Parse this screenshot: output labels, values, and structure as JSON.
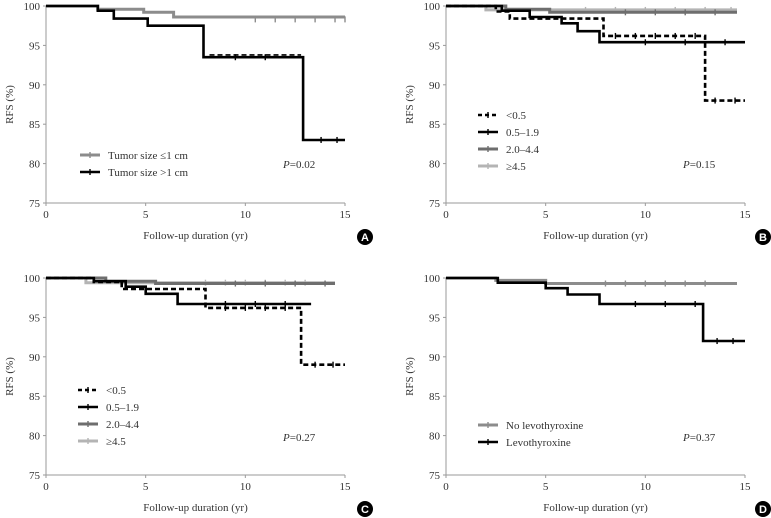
{
  "colors": {
    "black": "#000000",
    "darkgray": "#6e6e6e",
    "gray": "#8c8c8c",
    "lightgray": "#b4b4b4",
    "axis": "#9a9a9a"
  },
  "chart_data": [
    {
      "panel": "A",
      "type": "line",
      "xlabel": "Follow-up duration (yr)",
      "ylabel": "RFS (%)",
      "xlim": [
        0,
        15
      ],
      "ylim": [
        75,
        100
      ],
      "xticks": [
        0,
        5,
        10,
        15
      ],
      "yticks": [
        75,
        80,
        85,
        90,
        95,
        100
      ],
      "pvalue": {
        "prefix": "P",
        "text": "=0.02"
      },
      "series": [
        {
          "name": "Tumor size ≤1 cm",
          "style": "solid",
          "color": "#8c8c8c",
          "steps": [
            [
              0,
              100
            ],
            [
              2.6,
              100
            ],
            [
              2.6,
              99.6
            ],
            [
              4.9,
              99.6
            ],
            [
              4.9,
              99.2
            ],
            [
              6.4,
              99.2
            ],
            [
              6.4,
              98.6
            ],
            [
              15,
              98.6
            ]
          ],
          "censors": [
            [
              10.5,
              98.3
            ],
            [
              11.5,
              98.3
            ],
            [
              12.5,
              98.3
            ],
            [
              13.5,
              98.3
            ],
            [
              14.5,
              98.3
            ],
            [
              15,
              98.3
            ]
          ]
        },
        {
          "name": "Tumor size >1 cm",
          "style": "solid",
          "color": "#000000",
          "steps": [
            [
              0,
              100
            ],
            [
              2.6,
              100
            ],
            [
              2.6,
              99.4
            ],
            [
              3.4,
              99.4
            ],
            [
              3.4,
              98.4
            ],
            [
              5.1,
              98.4
            ],
            [
              5.1,
              97.5
            ],
            [
              7.9,
              97.5
            ],
            [
              7.9,
              93.5
            ],
            [
              12.9,
              93.5
            ],
            [
              12.9,
              83
            ],
            [
              15,
              83
            ]
          ],
          "censors": [
            [
              9.5,
              93.5
            ],
            [
              11,
              93.5
            ],
            [
              13.8,
              83
            ],
            [
              14.6,
              83
            ]
          ]
        }
      ],
      "dashed_overlay": [
        [
          8.2,
          93.8
        ],
        [
          12.8,
          93.8
        ]
      ]
    },
    {
      "panel": "B",
      "type": "line",
      "xlabel": "Follow-up duration (yr)",
      "ylabel": "RFS (%)",
      "xlim": [
        0,
        15
      ],
      "ylim": [
        75,
        100
      ],
      "xticks": [
        0,
        5,
        10,
        15
      ],
      "yticks": [
        75,
        80,
        85,
        90,
        95,
        100
      ],
      "pvalue": {
        "prefix": "P",
        "text": "=0.15"
      },
      "series": [
        {
          "name": "<0.5",
          "style": "dashed",
          "color": "#000000",
          "steps": [
            [
              0,
              100
            ],
            [
              2.5,
              100
            ],
            [
              2.5,
              99.3
            ],
            [
              3.2,
              99.3
            ],
            [
              3.2,
              98.4
            ],
            [
              7.9,
              98.4
            ],
            [
              7.9,
              96.2
            ],
            [
              13,
              96.2
            ],
            [
              13,
              88
            ],
            [
              15,
              88
            ]
          ],
          "censors": [
            [
              8.5,
              96.2
            ],
            [
              9.5,
              96.2
            ],
            [
              10.5,
              96.2
            ],
            [
              11.5,
              96.2
            ],
            [
              12.5,
              96.2
            ],
            [
              13.5,
              88
            ],
            [
              14.5,
              88
            ]
          ]
        },
        {
          "name": "0.5–1.9",
          "style": "solid",
          "color": "#000000",
          "steps": [
            [
              0,
              100
            ],
            [
              2.8,
              100
            ],
            [
              2.8,
              99.4
            ],
            [
              4.2,
              99.4
            ],
            [
              4.2,
              98.6
            ],
            [
              5.8,
              98.6
            ],
            [
              5.8,
              97.8
            ],
            [
              6.6,
              97.8
            ],
            [
              6.6,
              96.8
            ],
            [
              7.7,
              96.8
            ],
            [
              7.7,
              95.4
            ],
            [
              15,
              95.4
            ]
          ],
          "censors": [
            [
              10,
              95.4
            ],
            [
              12,
              95.4
            ],
            [
              14,
              95.4
            ]
          ]
        },
        {
          "name": "2.0–4.4",
          "style": "solid",
          "color": "#6e6e6e",
          "steps": [
            [
              0,
              100
            ],
            [
              3,
              100
            ],
            [
              3,
              99.6
            ],
            [
              5.2,
              99.6
            ],
            [
              5.2,
              99.2
            ],
            [
              14.6,
              99.2
            ]
          ],
          "censors": [
            [
              9,
              99.2
            ],
            [
              10.5,
              99.2
            ],
            [
              12,
              99.2
            ],
            [
              13.5,
              99.2
            ]
          ]
        },
        {
          "name": "≥4.5",
          "style": "solid",
          "color": "#b4b4b4",
          "steps": [
            [
              0,
              100
            ],
            [
              2,
              100
            ],
            [
              2,
              99.5
            ],
            [
              14.6,
              99.5
            ]
          ],
          "censors": [
            [
              7,
              99.5
            ],
            [
              8.5,
              99.5
            ],
            [
              10,
              99.5
            ],
            [
              11.5,
              99.5
            ],
            [
              13,
              99.5
            ],
            [
              14.3,
              99.5
            ]
          ]
        }
      ]
    },
    {
      "panel": "C",
      "type": "line",
      "xlabel": "Follow-up duration (yr)",
      "ylabel": "RFS (%)",
      "xlim": [
        0,
        15
      ],
      "ylim": [
        75,
        100
      ],
      "xticks": [
        0,
        5,
        10,
        15
      ],
      "yticks": [
        75,
        80,
        85,
        90,
        95,
        100
      ],
      "pvalue": {
        "prefix": "P",
        "text": "=0.27"
      },
      "series": [
        {
          "name": "<0.5",
          "style": "dashed",
          "color": "#000000",
          "steps": [
            [
              0,
              100
            ],
            [
              2.4,
              100
            ],
            [
              2.4,
              99.5
            ],
            [
              3.8,
              99.5
            ],
            [
              3.8,
              98.6
            ],
            [
              8,
              98.6
            ],
            [
              8,
              96.2
            ],
            [
              12.8,
              96.2
            ],
            [
              12.8,
              89
            ],
            [
              15,
              89
            ]
          ],
          "censors": [
            [
              9,
              96.2
            ],
            [
              10,
              96.2
            ],
            [
              11,
              96.2
            ],
            [
              12,
              96.2
            ],
            [
              13.5,
              89
            ],
            [
              14.4,
              89
            ]
          ]
        },
        {
          "name": "0.5–1.9",
          "style": "solid",
          "color": "#000000",
          "steps": [
            [
              0,
              100
            ],
            [
              2.4,
              100
            ],
            [
              2.4,
              99.6
            ],
            [
              4,
              99.6
            ],
            [
              4,
              98.9
            ],
            [
              5,
              98.9
            ],
            [
              5,
              98
            ],
            [
              6.6,
              98
            ],
            [
              6.6,
              96.7
            ],
            [
              13.3,
              96.7
            ]
          ],
          "censors": [
            [
              9,
              96.7
            ],
            [
              10.5,
              96.7
            ],
            [
              12,
              96.7
            ]
          ]
        },
        {
          "name": "2.0–4.4",
          "style": "solid",
          "color": "#6e6e6e",
          "steps": [
            [
              0,
              100
            ],
            [
              3,
              100
            ],
            [
              3,
              99.6
            ],
            [
              5.5,
              99.6
            ],
            [
              5.5,
              99.3
            ],
            [
              14.5,
              99.3
            ]
          ],
          "censors": [
            [
              9.5,
              99.3
            ],
            [
              11,
              99.3
            ],
            [
              12.5,
              99.3
            ],
            [
              14,
              99.3
            ]
          ]
        },
        {
          "name": "≥4.5",
          "style": "solid",
          "color": "#b4b4b4",
          "steps": [
            [
              0,
              100
            ],
            [
              2,
              100
            ],
            [
              2,
              99.4
            ],
            [
              14.5,
              99.4
            ]
          ],
          "censors": [
            [
              8,
              99.4
            ],
            [
              9,
              99.4
            ],
            [
              10,
              99.4
            ],
            [
              11,
              99.4
            ],
            [
              12,
              99.4
            ],
            [
              13,
              99.4
            ]
          ]
        }
      ]
    },
    {
      "panel": "D",
      "type": "line",
      "xlabel": "Follow-up duration (yr)",
      "ylabel": "RFS (%)",
      "xlim": [
        0,
        15
      ],
      "ylim": [
        75,
        100
      ],
      "xticks": [
        0,
        5,
        10,
        15
      ],
      "yticks": [
        75,
        80,
        85,
        90,
        95,
        100
      ],
      "pvalue": {
        "prefix": "P",
        "text": "=0.37"
      },
      "series": [
        {
          "name": "No levothyroxine",
          "style": "solid",
          "color": "#8c8c8c",
          "steps": [
            [
              0,
              100
            ],
            [
              2.5,
              100
            ],
            [
              2.5,
              99.7
            ],
            [
              5,
              99.7
            ],
            [
              5,
              99.3
            ],
            [
              14.6,
              99.3
            ]
          ],
          "censors": [
            [
              8,
              99.3
            ],
            [
              9,
              99.3
            ],
            [
              10,
              99.3
            ],
            [
              11,
              99.3
            ],
            [
              12,
              99.3
            ],
            [
              13,
              99.3
            ]
          ]
        },
        {
          "name": "Levothyroxine",
          "style": "solid",
          "color": "#000000",
          "steps": [
            [
              0,
              100
            ],
            [
              2.6,
              100
            ],
            [
              2.6,
              99.4
            ],
            [
              5,
              99.4
            ],
            [
              5,
              98.7
            ],
            [
              6.1,
              98.7
            ],
            [
              6.1,
              97.9
            ],
            [
              7.7,
              97.9
            ],
            [
              7.7,
              96.7
            ],
            [
              12.9,
              96.7
            ],
            [
              12.9,
              92
            ],
            [
              15,
              92
            ]
          ],
          "censors": [
            [
              9.5,
              96.7
            ],
            [
              11,
              96.7
            ],
            [
              12.5,
              96.7
            ],
            [
              13.6,
              92
            ],
            [
              14.4,
              92
            ]
          ]
        }
      ]
    }
  ]
}
